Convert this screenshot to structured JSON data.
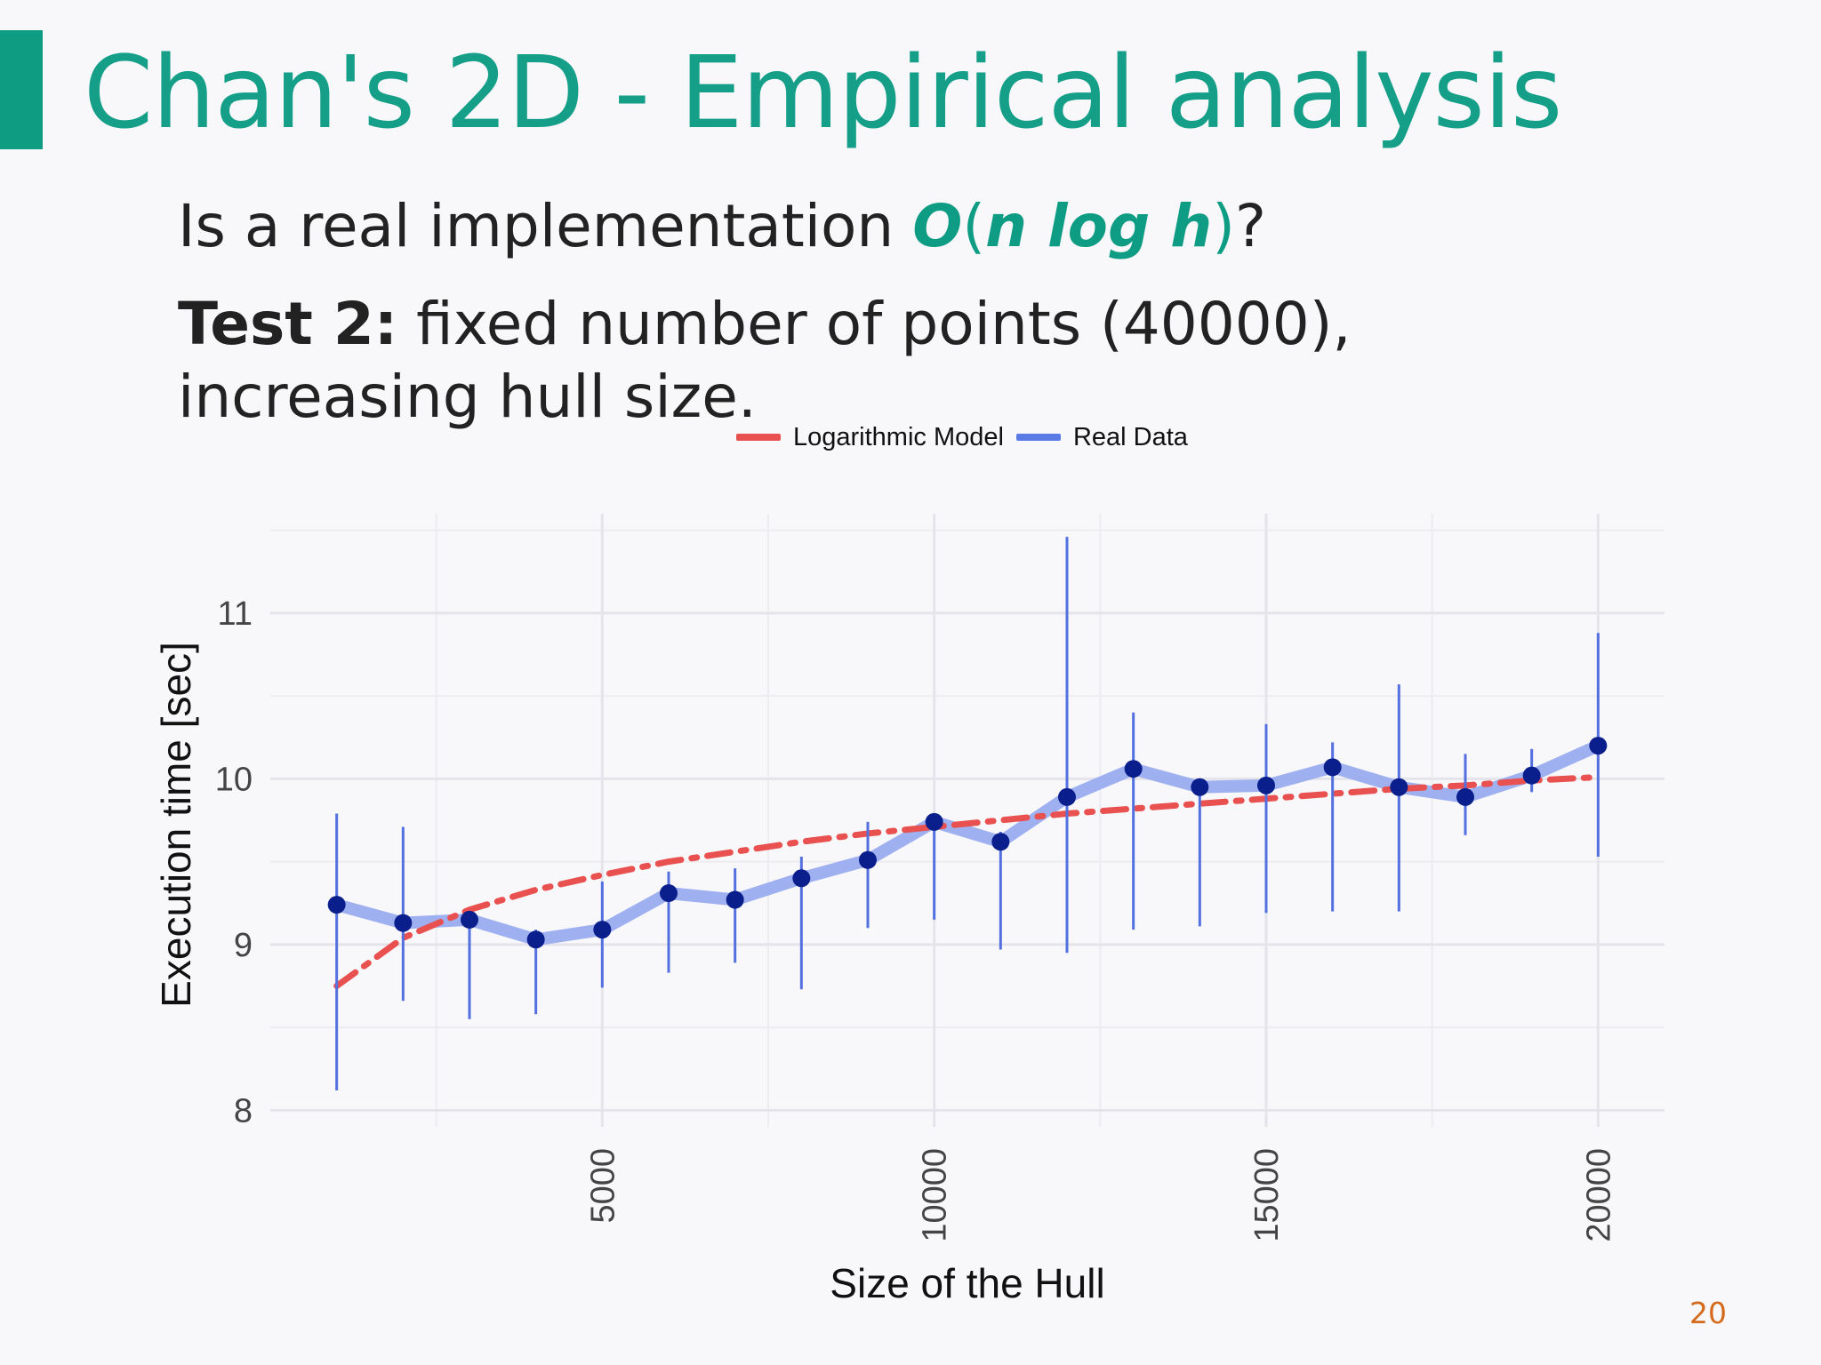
{
  "slide": {
    "title": "Chan's 2D - Empirical analysis",
    "question_prefix": "Is a real implementation ",
    "complexity_O": "O",
    "complexity_paren_open": "(",
    "complexity_inner": "n log h",
    "complexity_paren_close": ")",
    "question_suffix": "?",
    "test_label": "Test 2:",
    "test_text": " fixed number of points (40000), increasing hull size.",
    "page_number": "20",
    "accent_color": "#159e88",
    "page_number_color": "#d46a1c"
  },
  "chart_data": {
    "type": "line",
    "xlabel": "Size of the Hull",
    "ylabel": "Execution time [sec]",
    "xlim": [
      0,
      21000
    ],
    "ylim": [
      7.9,
      11.6
    ],
    "x_ticks": [
      5000,
      10000,
      15000,
      20000
    ],
    "x_tick_labels": [
      "5000",
      "10000",
      "15000",
      "20000"
    ],
    "y_ticks": [
      8,
      9,
      10,
      11
    ],
    "y_tick_labels": [
      "8",
      "9",
      "10",
      "11"
    ],
    "grid": true,
    "legend_position": "top-center",
    "legend": [
      {
        "name": "Logarithmic Model",
        "color": "#e8514f",
        "style": "dashdot"
      },
      {
        "name": "Real Data",
        "color": "#5a7be6",
        "style": "solid"
      }
    ],
    "series": [
      {
        "name": "Real Data",
        "color": "#9aacf0",
        "point_color": "#0a1e8c",
        "errorbar_color": "#5470df",
        "x": [
          1000,
          2000,
          3000,
          4000,
          5000,
          6000,
          7000,
          8000,
          9000,
          10000,
          11000,
          12000,
          13000,
          14000,
          15000,
          16000,
          17000,
          18000,
          19000,
          20000
        ],
        "y": [
          9.24,
          9.13,
          9.15,
          9.03,
          9.09,
          9.31,
          9.27,
          9.4,
          9.51,
          9.74,
          9.62,
          9.89,
          10.06,
          9.95,
          9.96,
          10.07,
          9.95,
          9.89,
          10.02,
          10.2
        ],
        "y_low": [
          8.12,
          8.66,
          8.55,
          8.58,
          8.74,
          8.83,
          8.89,
          8.73,
          9.1,
          9.15,
          8.97,
          8.95,
          9.09,
          9.11,
          9.19,
          9.2,
          9.2,
          9.66,
          9.92,
          9.53
        ],
        "y_high": [
          9.79,
          9.71,
          9.14,
          9.09,
          9.38,
          9.44,
          9.46,
          9.53,
          9.74,
          9.72,
          9.68,
          11.46,
          10.4,
          9.98,
          10.33,
          10.22,
          10.57,
          10.15,
          10.18,
          10.88
        ]
      },
      {
        "name": "Logarithmic Model",
        "color": "#e8514f",
        "x": [
          1000,
          2000,
          3000,
          4000,
          5000,
          6000,
          7000,
          8000,
          9000,
          10000,
          11000,
          12000,
          13000,
          14000,
          15000,
          16000,
          17000,
          18000,
          19000,
          20000
        ],
        "y": [
          8.75,
          9.04,
          9.21,
          9.33,
          9.42,
          9.5,
          9.56,
          9.62,
          9.67,
          9.71,
          9.75,
          9.79,
          9.82,
          9.85,
          9.88,
          9.91,
          9.94,
          9.96,
          9.99,
          10.01
        ]
      }
    ]
  }
}
